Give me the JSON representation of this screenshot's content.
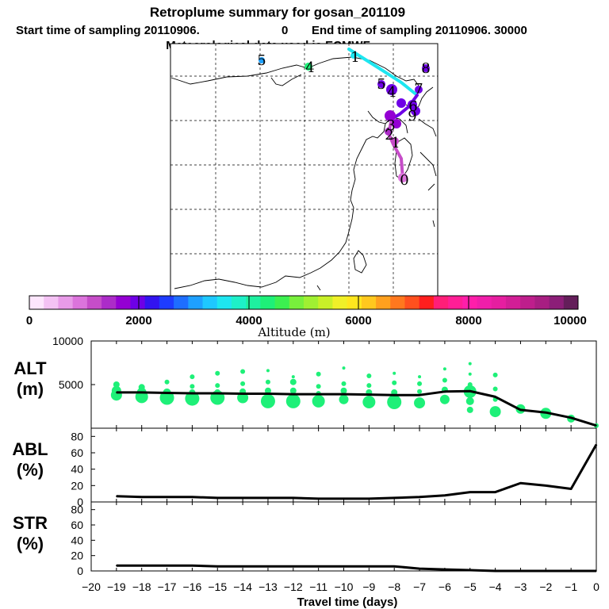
{
  "header": {
    "title": "Retroplume summary for gosan_201109",
    "start_label": "Start time of sampling 20110906.",
    "start_hms": "0",
    "end_label": "End time of sampling 20110906. 30000",
    "met": "Meteorological data used is ECMWF"
  },
  "map": {
    "trajectory_labels": [
      "0",
      "1",
      "2",
      "3",
      "4",
      "5",
      "6",
      "7",
      "8",
      "9",
      "1",
      "4",
      "5"
    ]
  },
  "colorbar": {
    "label": "Altitude (m)",
    "ticks": [
      "0",
      "2000",
      "4000",
      "6000",
      "8000",
      "10000"
    ],
    "range": [
      0,
      10000
    ],
    "colors": [
      "#fde6fd",
      "#f4c2f4",
      "#e89be8",
      "#dc74dc",
      "#c64dc8",
      "#ac2cc8",
      "#9400d3",
      "#6e00e6",
      "#3214f0",
      "#1e3cff",
      "#1e6eff",
      "#1ea0ff",
      "#1ec8ff",
      "#1ee6f0",
      "#1ef0c8",
      "#1ef0a0",
      "#1ef078",
      "#3cf050",
      "#78f03c",
      "#a0f032",
      "#c8f028",
      "#f0f028",
      "#ffe61e",
      "#ffc81e",
      "#ffa01e",
      "#ff781e",
      "#ff501e",
      "#ff1e1e",
      "#ff1e78",
      "#ff1e96",
      "#ff1eaa",
      "#f01eaa",
      "#e61ea0",
      "#d21e96",
      "#be1e8c",
      "#a81e82",
      "#8c1e78",
      "#641e5a"
    ]
  },
  "chart_data": [
    {
      "type": "line",
      "panel": "ALT",
      "ylabel": [
        "ALT",
        "(m)"
      ],
      "ylim": [
        0,
        10000
      ],
      "yticks": [
        5000,
        10000
      ],
      "ytick_labels": [
        "5000",
        "10000"
      ],
      "x": [
        -19,
        -18,
        -17,
        -16,
        -15,
        -14,
        -13,
        -12,
        -11,
        -10,
        -9,
        -8,
        -7,
        -6,
        -5,
        -4,
        -3,
        -2,
        -1,
        0
      ],
      "values": [
        4100,
        4100,
        4050,
        4000,
        4000,
        3950,
        3950,
        3900,
        3900,
        3900,
        3850,
        3800,
        3800,
        4200,
        4250,
        3600,
        2100,
        1800,
        1200,
        300
      ],
      "clusters": [
        {
          "x": -19,
          "altitude": 5000,
          "size": 4
        },
        {
          "x": -19,
          "altitude": 4300,
          "size": 6
        },
        {
          "x": -19,
          "altitude": 3800,
          "size": 7
        },
        {
          "x": -18,
          "altitude": 4700,
          "size": 4
        },
        {
          "x": -18,
          "altitude": 4100,
          "size": 6
        },
        {
          "x": -18,
          "altitude": 3600,
          "size": 8
        },
        {
          "x": -17,
          "altitude": 5300,
          "size": 3
        },
        {
          "x": -17,
          "altitude": 4100,
          "size": 5
        },
        {
          "x": -17,
          "altitude": 3500,
          "size": 9
        },
        {
          "x": -16,
          "altitude": 5900,
          "size": 3
        },
        {
          "x": -16,
          "altitude": 4800,
          "size": 3
        },
        {
          "x": -16,
          "altitude": 4100,
          "size": 4
        },
        {
          "x": -16,
          "altitude": 3400,
          "size": 9
        },
        {
          "x": -15,
          "altitude": 6300,
          "size": 3
        },
        {
          "x": -15,
          "altitude": 4900,
          "size": 3
        },
        {
          "x": -15,
          "altitude": 4100,
          "size": 4
        },
        {
          "x": -15,
          "altitude": 3500,
          "size": 9
        },
        {
          "x": -14,
          "altitude": 6500,
          "size": 3
        },
        {
          "x": -14,
          "altitude": 5100,
          "size": 3
        },
        {
          "x": -14,
          "altitude": 4200,
          "size": 4
        },
        {
          "x": -14,
          "altitude": 3500,
          "size": 7
        },
        {
          "x": -13,
          "altitude": 6600,
          "size": 2
        },
        {
          "x": -13,
          "altitude": 5300,
          "size": 3
        },
        {
          "x": -13,
          "altitude": 4300,
          "size": 4
        },
        {
          "x": -13,
          "altitude": 3100,
          "size": 9
        },
        {
          "x": -12,
          "altitude": 5900,
          "size": 2
        },
        {
          "x": -12,
          "altitude": 5300,
          "size": 4
        },
        {
          "x": -12,
          "altitude": 4300,
          "size": 4
        },
        {
          "x": -12,
          "altitude": 3100,
          "size": 9
        },
        {
          "x": -11,
          "altitude": 6200,
          "size": 3
        },
        {
          "x": -11,
          "altitude": 4800,
          "size": 3
        },
        {
          "x": -11,
          "altitude": 4000,
          "size": 3
        },
        {
          "x": -11,
          "altitude": 3100,
          "size": 8
        },
        {
          "x": -10,
          "altitude": 6900,
          "size": 2
        },
        {
          "x": -10,
          "altitude": 5100,
          "size": 3
        },
        {
          "x": -10,
          "altitude": 4300,
          "size": 4
        },
        {
          "x": -10,
          "altitude": 3300,
          "size": 6
        },
        {
          "x": -9,
          "altitude": 6000,
          "size": 3
        },
        {
          "x": -9,
          "altitude": 4900,
          "size": 3
        },
        {
          "x": -9,
          "altitude": 4100,
          "size": 4
        },
        {
          "x": -9,
          "altitude": 3000,
          "size": 8
        },
        {
          "x": -8,
          "altitude": 6300,
          "size": 2
        },
        {
          "x": -8,
          "altitude": 5200,
          "size": 3
        },
        {
          "x": -8,
          "altitude": 4100,
          "size": 4
        },
        {
          "x": -8,
          "altitude": 3000,
          "size": 9
        },
        {
          "x": -7,
          "altitude": 5900,
          "size": 2
        },
        {
          "x": -7,
          "altitude": 5100,
          "size": 3
        },
        {
          "x": -7,
          "altitude": 4200,
          "size": 3
        },
        {
          "x": -7,
          "altitude": 2900,
          "size": 7
        },
        {
          "x": -6,
          "altitude": 6800,
          "size": 2
        },
        {
          "x": -6,
          "altitude": 5500,
          "size": 3
        },
        {
          "x": -6,
          "altitude": 4400,
          "size": 4
        },
        {
          "x": -6,
          "altitude": 3300,
          "size": 6
        },
        {
          "x": -5,
          "altitude": 7400,
          "size": 2
        },
        {
          "x": -5,
          "altitude": 6200,
          "size": 2
        },
        {
          "x": -5,
          "altitude": 5000,
          "size": 3
        },
        {
          "x": -5,
          "altitude": 4200,
          "size": 8
        },
        {
          "x": -5,
          "altitude": 3100,
          "size": 5
        },
        {
          "x": -5,
          "altitude": 2100,
          "size": 4
        },
        {
          "x": -4,
          "altitude": 6100,
          "size": 3
        },
        {
          "x": -4,
          "altitude": 4500,
          "size": 3
        },
        {
          "x": -4,
          "altitude": 3300,
          "size": 3
        },
        {
          "x": -4,
          "altitude": 1900,
          "size": 7
        },
        {
          "x": -3,
          "altitude": 2200,
          "size": 6
        },
        {
          "x": -2,
          "altitude": 1700,
          "size": 7
        },
        {
          "x": -1,
          "altitude": 1100,
          "size": 5
        },
        {
          "x": 0,
          "altitude": 300,
          "size": 3
        }
      ]
    },
    {
      "type": "line",
      "panel": "ABL",
      "ylabel": [
        "ABL",
        "(%)"
      ],
      "ylim": [
        0,
        90
      ],
      "yticks": [
        0,
        20,
        40,
        60,
        80
      ],
      "ytick_labels": [
        "0",
        "20",
        "40",
        "60",
        "80"
      ],
      "x": [
        -19,
        -18,
        -17,
        -16,
        -15,
        -14,
        -13,
        -12,
        -11,
        -10,
        -9,
        -8,
        -7,
        -6,
        -5,
        -4,
        -3,
        -2,
        -1,
        0
      ],
      "values": [
        7,
        6,
        6,
        6,
        5,
        5,
        5,
        5,
        4,
        4,
        4,
        5,
        6,
        8,
        12,
        12,
        23,
        20,
        16,
        70
      ]
    },
    {
      "type": "line",
      "panel": "STR",
      "ylabel": [
        "STR",
        "(%)"
      ],
      "ylim": [
        0,
        90
      ],
      "yticks": [
        0,
        20,
        40,
        60,
        80
      ],
      "ytick_labels": [
        "0",
        "20",
        "40",
        "60",
        "80"
      ],
      "x": [
        -19,
        -18,
        -17,
        -16,
        -15,
        -14,
        -13,
        -12,
        -11,
        -10,
        -9,
        -8,
        -7,
        -6,
        -5,
        -4,
        -3,
        -2,
        -1,
        0
      ],
      "values": [
        7,
        7,
        7,
        7,
        6,
        6,
        6,
        6,
        6,
        6,
        6,
        6,
        3,
        2,
        1,
        0,
        0,
        0,
        0,
        0
      ],
      "xlabel": "Travel time (days)",
      "xlim": [
        -20,
        0
      ],
      "xticks": [
        -20,
        -19,
        -18,
        -17,
        -16,
        -15,
        -14,
        -13,
        -12,
        -11,
        -10,
        -9,
        -8,
        -7,
        -6,
        -5,
        -4,
        -3,
        -2,
        -1,
        0
      ],
      "xtick_labels": [
        "−20",
        "−19",
        "−18",
        "−17",
        "−16",
        "−15",
        "−14",
        "−13",
        "−12",
        "−11",
        "−10",
        "−9",
        "−8",
        "−7",
        "−6",
        "−5",
        "−4",
        "−3",
        "−2",
        "−1",
        "0"
      ]
    }
  ]
}
